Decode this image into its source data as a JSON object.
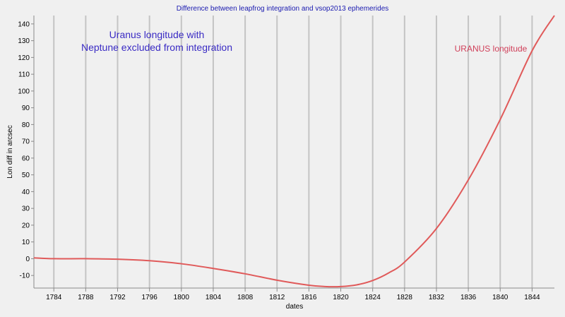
{
  "chart_data": {
    "type": "line",
    "title": "Difference between leapfrog integration and vsop2013 ephemerides",
    "xlabel": "dates",
    "ylabel": "Lon diff in arcsec",
    "xlim": [
      1781.5,
      1846.8
    ],
    "ylim": [
      -17.5,
      145
    ],
    "x_ticks": [
      1784,
      1788,
      1792,
      1796,
      1800,
      1804,
      1808,
      1812,
      1816,
      1820,
      1824,
      1828,
      1832,
      1836,
      1840,
      1844
    ],
    "y_ticks": [
      -10,
      0,
      10,
      20,
      30,
      40,
      50,
      60,
      70,
      80,
      90,
      100,
      110,
      120,
      130,
      140
    ],
    "vertical_grid": true,
    "horizontal_grid": false,
    "series": [
      {
        "name": "URANUS longitude",
        "color": "#e05a5a",
        "x": [
          1781.5,
          1784,
          1788,
          1792,
          1796,
          1800,
          1804,
          1808,
          1812,
          1816,
          1818,
          1820,
          1822,
          1824,
          1826,
          1828,
          1832,
          1836,
          1840,
          1844,
          1846.8
        ],
        "y": [
          0.5,
          0,
          0,
          -0.3,
          -1.2,
          -3,
          -5.8,
          -9,
          -12.8,
          -15.8,
          -16.6,
          -16.6,
          -15.6,
          -13,
          -8.5,
          -2,
          18,
          47,
          83,
          124,
          145
        ]
      }
    ],
    "annotations": [
      {
        "text": "Uranus longitude with",
        "color": "#3a2bc4"
      },
      {
        "text": "Neptune excluded from integration",
        "color": "#3a2bc4"
      }
    ],
    "series_label_color": "#d0405a"
  }
}
